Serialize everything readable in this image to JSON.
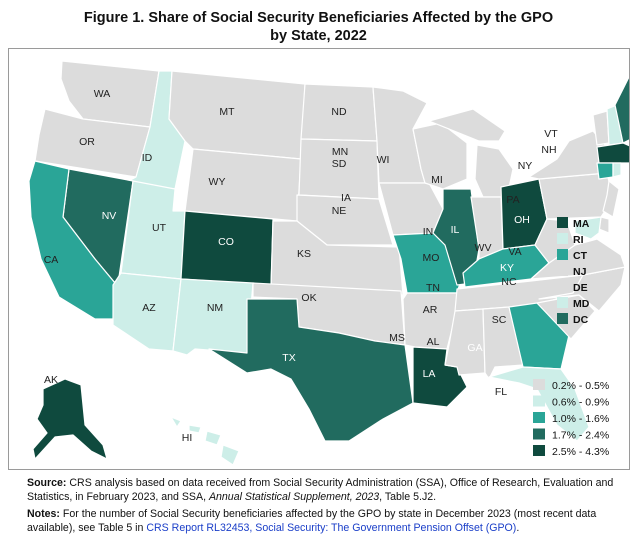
{
  "title": {
    "line1": "Figure 1. Share of Social Security Beneficiaries Affected by the GPO",
    "line2": "by State, 2022"
  },
  "colors": {
    "c1": "#dcdcdc",
    "c2": "#cdeee8",
    "c3": "#2aa597",
    "c4": "#216b5f",
    "c5": "#0f4a3e"
  },
  "legend": [
    {
      "range": "0.2% - 0.5%",
      "class": "c1"
    },
    {
      "range": "0.6% - 0.9%",
      "class": "c2"
    },
    {
      "range": "1.0% - 1.6%",
      "class": "c3"
    },
    {
      "range": "1.7% - 2.4%",
      "class": "c4"
    },
    {
      "range": "2.5% - 4.3%",
      "class": "c5"
    }
  ],
  "small_states_key": [
    {
      "abbr": "MA",
      "class": "c5"
    },
    {
      "abbr": "RI",
      "class": "c2"
    },
    {
      "abbr": "CT",
      "class": "c3"
    },
    {
      "abbr": "NJ",
      "class": "c1"
    },
    {
      "abbr": "DE",
      "class": "c1"
    },
    {
      "abbr": "MD",
      "class": "c2"
    },
    {
      "abbr": "DC",
      "class": "c4"
    }
  ],
  "states": {
    "WA": "c1",
    "OR": "c1",
    "ID": "c2",
    "MT": "c1",
    "WY": "c1",
    "ND": "c1",
    "SD": "c1",
    "NE": "c1",
    "KS": "c1",
    "OK": "c1",
    "TX": "c4",
    "NM": "c2",
    "AZ": "c2",
    "UT": "c2",
    "CO": "c5",
    "NV": "c4",
    "CA": "c3",
    "MN": "c1",
    "IA": "c1",
    "MO": "c3",
    "AR": "c1",
    "LA": "c5",
    "WI": "c1",
    "IL": "c4",
    "MI": "c1",
    "IN": "c1",
    "OH": "c5",
    "KY": "c3",
    "TN": "c1",
    "MS": "c1",
    "AL": "c1",
    "GA": "c3",
    "FL": "c2",
    "SC": "c1",
    "NC": "c1",
    "VA": "c1",
    "WV": "c1",
    "PA": "c1",
    "NY": "c1",
    "VT": "c1",
    "NH": "c2",
    "ME": "c4",
    "MA": "c5",
    "CT": "c3",
    "RI": "c2",
    "NJ": "c1",
    "DE": "c1",
    "MD": "c2",
    "AK": "c5",
    "HI": "c2"
  },
  "notes": {
    "source_label": "Source:",
    "source_text_1": " CRS analysis based on data received from Social Security Administration (SSA), Office of Research, Evaluation and Statistics, in February 2023, and SSA, ",
    "source_italic": "Annual Statistical Supplement, 2023",
    "source_text_2": ", Table 5.J2.",
    "notes_label": "Notes:",
    "notes_text": " For the number of Social Security beneficiaries affected by the GPO by state in December 2023 (most recent data available), see Table 5 in ",
    "link1": "CRS Report RL32453, Social Security: The Government Pension Offset (GPO)",
    "notes_end": "."
  }
}
